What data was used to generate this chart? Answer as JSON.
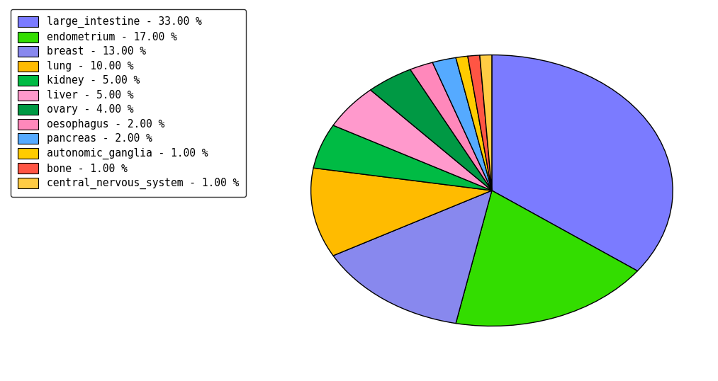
{
  "labels": [
    "large_intestine",
    "endometrium",
    "breast",
    "lung",
    "kidney",
    "liver",
    "ovary",
    "oesophagus",
    "pancreas",
    "autonomic_ganglia",
    "bone",
    "central_nervous_system"
  ],
  "values": [
    33,
    17,
    13,
    10,
    5,
    5,
    4,
    2,
    2,
    1,
    1,
    1
  ],
  "colors": [
    "#7b7bff",
    "#33dd00",
    "#8888ee",
    "#ffbb00",
    "#00bb44",
    "#ff99cc",
    "#009944",
    "#ff88bb",
    "#55aaff",
    "#ffcc00",
    "#ff5544",
    "#ffcc44"
  ],
  "legend_labels": [
    "large_intestine - 33.00 %",
    "endometrium - 17.00 %",
    "breast - 13.00 %",
    "lung - 10.00 %",
    "kidney - 5.00 %",
    "liver - 5.00 %",
    "ovary - 4.00 %",
    "oesophagus - 2.00 %",
    "pancreas - 2.00 %",
    "autonomic_ganglia - 1.00 %",
    "bone - 1.00 %",
    "central_nervous_system - 1.00 %"
  ],
  "startangle": 90,
  "figsize": [
    10.13,
    5.38
  ],
  "dpi": 100
}
